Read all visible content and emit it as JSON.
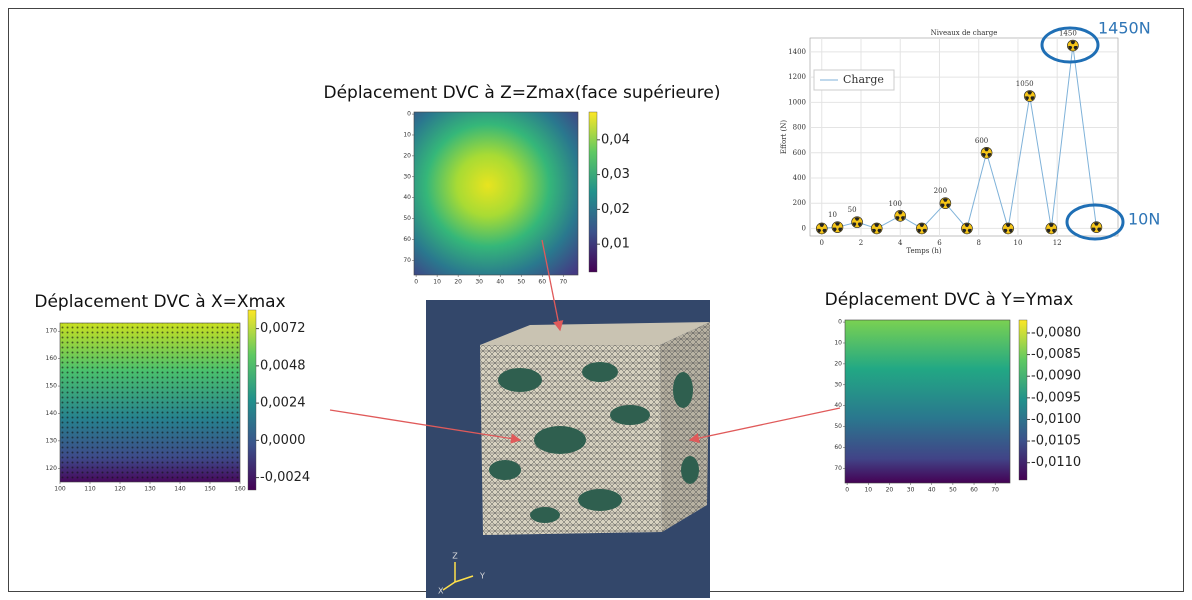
{
  "chart_data": [
    {
      "type": "line",
      "title": "Niveaux de charge",
      "x_label": "Temps (h)",
      "y_label": "Effort (N)",
      "x": [
        0,
        0.8,
        1.8,
        2.8,
        4.0,
        5.1,
        6.3,
        7.4,
        8.4,
        9.5,
        10.6,
        11.7,
        12.8,
        14.0
      ],
      "series": [
        {
          "name": "Charge",
          "color": "#7fb2d9",
          "values": [
            0,
            10,
            50,
            0,
            100,
            0,
            200,
            0,
            600,
            0,
            1050,
            0,
            1450,
            10
          ],
          "value_labels": [
            null,
            "10",
            "50",
            null,
            "100",
            null,
            "200",
            null,
            "600",
            null,
            "1050",
            null,
            "1450",
            null
          ]
        }
      ],
      "xlim": [
        -0.6,
        15.1
      ],
      "xticks": [
        0,
        2,
        4,
        6,
        8,
        10,
        12
      ],
      "ylim": [
        -60,
        1510
      ],
      "yticks": [
        0,
        200,
        400,
        600,
        800,
        1000,
        1200,
        1400
      ],
      "grid": true,
      "legend": "upper left",
      "annotations": [
        "1450N",
        "10N"
      ]
    },
    {
      "type": "heatmap",
      "title": "Déplacement DVC à Z=Zmax(face supérieure)",
      "xlim": [
        -1,
        77
      ],
      "xticks": [
        0,
        10,
        20,
        30,
        40,
        50,
        60,
        70
      ],
      "ylim": [
        77,
        -1
      ],
      "yticks": [
        0,
        10,
        20,
        30,
        40,
        50,
        60,
        70
      ],
      "clim": [
        0.002,
        0.048
      ],
      "cticks": [
        {
          "value": 0.01,
          "label": "0,01"
        },
        {
          "value": 0.02,
          "label": "0,02"
        },
        {
          "value": 0.03,
          "label": "0,03"
        },
        {
          "value": 0.04,
          "label": "0,04"
        }
      ]
    },
    {
      "type": "heatmap",
      "title": "Déplacement DVC à X=Xmax",
      "xlim": [
        100,
        160
      ],
      "xticks": [
        100,
        110,
        120,
        130,
        140,
        150,
        160
      ],
      "ylim": [
        115,
        173
      ],
      "yticks": [
        120,
        130,
        140,
        150,
        160,
        170
      ],
      "clim": [
        -0.0032,
        0.0084
      ],
      "cticks": [
        {
          "value": 0.0072,
          "label": "0,0072"
        },
        {
          "value": 0.0048,
          "label": "0,0048"
        },
        {
          "value": 0.0024,
          "label": "0,0024"
        },
        {
          "value": 0.0,
          "label": "0,0000"
        },
        {
          "value": -0.0024,
          "label": "-0,0024"
        }
      ]
    },
    {
      "type": "heatmap",
      "title": "Déplacement DVC à Y=Ymax",
      "xlim": [
        -1,
        77
      ],
      "xticks": [
        0,
        10,
        20,
        30,
        40,
        50,
        60,
        70
      ],
      "ylim": [
        77,
        -1
      ],
      "yticks": [
        0,
        10,
        20,
        30,
        40,
        50,
        60,
        70
      ],
      "clim": [
        -0.0114,
        -0.0077
      ],
      "cticks": [
        {
          "value": -0.008,
          "label": "-0,0080"
        },
        {
          "value": -0.0085,
          "label": "-0,0085"
        },
        {
          "value": -0.009,
          "label": "-0,0090"
        },
        {
          "value": -0.0095,
          "label": "-0,0095"
        },
        {
          "value": -0.01,
          "label": "-0,0100"
        },
        {
          "value": -0.0105,
          "label": "-0,0105"
        },
        {
          "value": -0.011,
          "label": "-0,0110"
        }
      ]
    }
  ],
  "mesh_view": {
    "axes": [
      "Z",
      "Y",
      "X"
    ]
  }
}
